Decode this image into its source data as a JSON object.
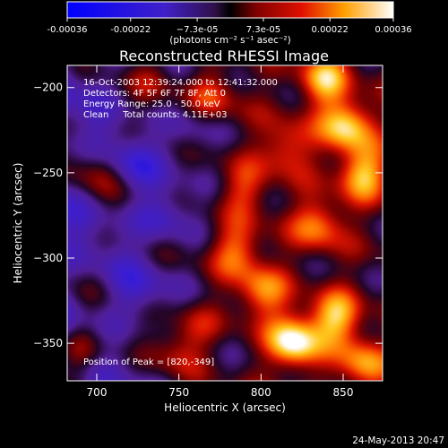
{
  "chart_data": {
    "type": "heatmap",
    "title": "Reconstructed RHESSI Image",
    "xlabel": "Heliocentric X (arcsec)",
    "ylabel": "Heliocentric Y (arcsec)",
    "xlim": [
      682,
      874
    ],
    "ylim": [
      -372,
      -187
    ],
    "x_ticks": [
      700,
      750,
      800,
      850
    ],
    "y_ticks": [
      -200,
      -250,
      -300,
      -350
    ],
    "colorbar": {
      "range": [
        -0.00036,
        0.00036
      ],
      "ticks": [
        -0.00036,
        -0.00022,
        -7.3e-05,
        7.3e-05,
        0.00022,
        0.00036
      ],
      "tick_labels": [
        "-0.00036",
        "-0.00022",
        "−7.3e-05",
        "7.3e-05",
        "0.00022",
        "0.00036"
      ],
      "units": "(photons cm⁻² s⁻¹ asec⁻²)"
    },
    "annotations": [
      "16-Oct-2003 12:39:24.000 to 12:41:32.000",
      "Detectors: 4F 5F 6F 7F 8F, Att 0",
      "Energy Range: 25.0 - 50.0 keV",
      "Clean     Total counts: 4.11E+03"
    ],
    "peak_label": "Position of Peak = [820,-349]",
    "peak": [
      820,
      -349
    ],
    "sources": [
      {
        "x": 820,
        "y": -349,
        "amp": 1.0
      },
      {
        "x": 800,
        "y": -320,
        "amp": 0.6
      },
      {
        "x": 845,
        "y": -335,
        "amp": 0.75
      },
      {
        "x": 862,
        "y": -362,
        "amp": 0.65
      },
      {
        "x": 785,
        "y": -295,
        "amp": 0.55
      },
      {
        "x": 835,
        "y": -280,
        "amp": 0.6
      },
      {
        "x": 862,
        "y": -250,
        "amp": 0.75
      },
      {
        "x": 852,
        "y": -222,
        "amp": 0.85
      },
      {
        "x": 815,
        "y": -235,
        "amp": 0.5
      },
      {
        "x": 790,
        "y": -260,
        "amp": 0.4
      },
      {
        "x": 838,
        "y": -195,
        "amp": 0.7
      },
      {
        "x": 770,
        "y": -205,
        "amp": 0.45
      },
      {
        "x": 735,
        "y": -195,
        "amp": 0.3
      },
      {
        "x": 700,
        "y": -250,
        "amp": 0.35
      },
      {
        "x": 690,
        "y": -355,
        "amp": 0.45
      },
      {
        "x": 760,
        "y": -340,
        "amp": 0.3
      },
      {
        "x": 748,
        "y": -355,
        "amp": 0.35
      },
      {
        "x": 722,
        "y": -245,
        "amp": -0.35
      },
      {
        "x": 740,
        "y": -275,
        "amp": -0.4
      },
      {
        "x": 725,
        "y": -320,
        "amp": -0.3
      },
      {
        "x": 757,
        "y": -225,
        "amp": -0.25
      }
    ]
  },
  "footer": {
    "date": "24-May-2013 20:47"
  }
}
